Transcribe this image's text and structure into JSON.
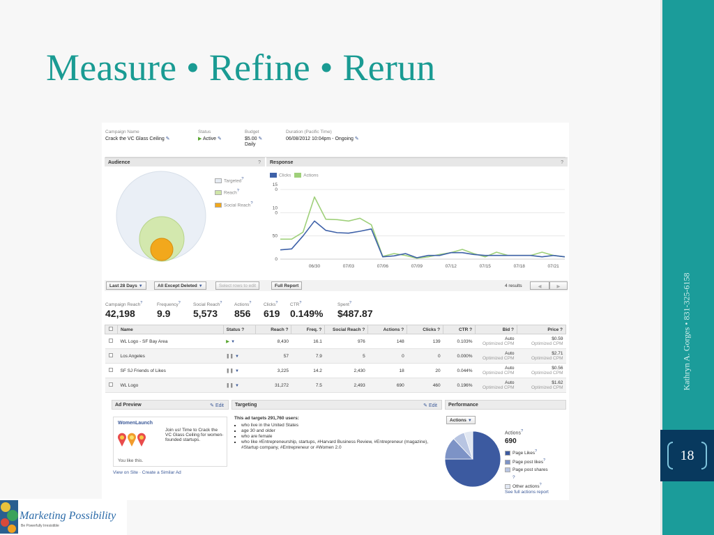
{
  "slide": {
    "title": "Measure • Refine • Rerun",
    "vertical_text": "Kathryn A. Gorges • 831-325-6158",
    "page_number": "18",
    "logo": {
      "name": "Marketing Possibility",
      "tagline": "Be Powerfully Irresistible"
    },
    "colors": {
      "title": "#1a9b93",
      "band": "#1b9c9a",
      "page_box": "#08395e"
    }
  },
  "campaign": {
    "name_label": "Campaign Name",
    "name": "Crack the VC Glass Ceiling",
    "status_label": "Status",
    "status": "Active",
    "budget_label": "Budget",
    "budget": "$5.00",
    "budget_period": "Daily",
    "duration_label": "Duration (Pacific Time)",
    "duration": "06/08/2012 10:04pm - Ongoing"
  },
  "audience": {
    "title": "Audience",
    "help": "?",
    "legend": [
      {
        "label": "Targeted",
        "color": "#e6ecf3"
      },
      {
        "label": "Reach",
        "color": "#cfe5a8"
      },
      {
        "label": "Social Reach",
        "color": "#f2a81c"
      }
    ]
  },
  "response": {
    "title": "Response",
    "help": "?",
    "legend": [
      {
        "label": "Clicks",
        "color": "#3e61a8"
      },
      {
        "label": "Actions",
        "color": "#9fd07a"
      }
    ]
  },
  "chart_data": {
    "type": "line",
    "y_ticks": [
      "15\n0",
      "10\n0",
      "50",
      "0"
    ],
    "ylim": [
      0,
      150
    ],
    "x_ticks": [
      "06/30",
      "07/03",
      "07/06",
      "07/09",
      "07/12",
      "07/15",
      "07/18",
      "07/21"
    ],
    "series": [
      {
        "name": "Clicks",
        "color": "#3e61a8",
        "values": [
          20,
          22,
          50,
          82,
          62,
          57,
          56,
          60,
          65,
          5,
          7,
          12,
          3,
          8,
          8,
          14,
          14,
          10,
          8,
          8,
          8,
          8,
          8,
          5,
          8,
          5
        ]
      },
      {
        "name": "Actions",
        "color": "#9fd07a",
        "values": [
          43,
          43,
          58,
          134,
          86,
          85,
          82,
          88,
          74,
          6,
          12,
          8,
          2,
          5,
          10,
          14,
          21,
          12,
          5,
          15,
          8,
          8,
          8,
          15,
          8,
          5
        ]
      }
    ]
  },
  "toolbar": {
    "range": "Last 28 Days",
    "filter": "All Except Deleted",
    "select_rows": "Select rows to edit",
    "full_report": "Full Report",
    "results": "4 results",
    "prev": "◀",
    "next": "▶"
  },
  "stats": [
    {
      "label": "Campaign Reach",
      "value": "42,198"
    },
    {
      "label": "Frequency",
      "value": "9.9"
    },
    {
      "label": "Social Reach",
      "value": "5,573"
    },
    {
      "label": "Actions",
      "value": "856"
    },
    {
      "label": "Clicks",
      "value": "619"
    },
    {
      "label": "CTR",
      "value": "0.149%"
    },
    {
      "label": "Spent",
      "value": "$487.87"
    }
  ],
  "table": {
    "headers": [
      "Name",
      "Status ?",
      "Reach ?",
      "Freq. ?",
      "Social Reach ?",
      "Actions ?",
      "Clicks ?",
      "CTR ?",
      "Bid ?",
      "Price ?"
    ],
    "rows": [
      {
        "name": "WL Logo - SF Bay Area",
        "status": "active",
        "reach": "8,430",
        "freq": "16.1",
        "social": "976",
        "actions": "148",
        "clicks": "139",
        "ctr": "0.103%",
        "bid": "Auto",
        "bid_sub": "Optimized CPM",
        "price": "$0.59",
        "price_sub": "Optimized CPM"
      },
      {
        "name": "Los Angeles",
        "status": "paused",
        "reach": "57",
        "freq": "7.9",
        "social": "5",
        "actions": "0",
        "clicks": "0",
        "ctr": "0.000%",
        "bid": "Auto",
        "bid_sub": "Optimized CPM",
        "price": "$2.71",
        "price_sub": "Optimized CPM"
      },
      {
        "name": "SF SJ Friends of Likes",
        "status": "paused",
        "reach": "3,225",
        "freq": "14.2",
        "social": "2,430",
        "actions": "18",
        "clicks": "20",
        "ctr": "0.044%",
        "bid": "Auto",
        "bid_sub": "Optimized CPM",
        "price": "$0.56",
        "price_sub": "Optimized CPM"
      },
      {
        "name": "WL Logo",
        "status": "paused",
        "reach": "31,272",
        "freq": "7.5",
        "social": "2,493",
        "actions": "690",
        "clicks": "460",
        "ctr": "0.196%",
        "bid": "Auto",
        "bid_sub": "Optimized CPM",
        "price": "$1.62",
        "price_sub": "Optimized CPM"
      }
    ]
  },
  "ad_preview": {
    "title": "Ad Preview",
    "edit": "Edit",
    "ad_title": "WomenLaunch",
    "ad_body": "Join us! Time to Crack the VC Glass Ceiling for women-founded startups.",
    "like": "You like this.",
    "links": "View on Site · Create a Similar Ad"
  },
  "targeting": {
    "title": "Targeting",
    "edit": "Edit",
    "intro": "This ad targets 291,760 users:",
    "items": [
      "who live in the United States",
      "age 30 and older",
      "who are female",
      "who like #Entrepreneurship, startups, #Harvard Business Review, #Entrepreneur (magazine), #Startup company, #Entrepreneur or #Women 2.0"
    ]
  },
  "performance": {
    "title": "Performance",
    "dropdown": "Actions",
    "actions_label": "Actions",
    "actions_value": "690",
    "legend": [
      {
        "label": "Page Likes",
        "color": "#3c5aa0"
      },
      {
        "label": "Page post likes",
        "color": "#7d93c6"
      },
      {
        "label": "Page post shares",
        "color": "#b8c5e2"
      },
      {
        "label": "Other actions",
        "color": "#e1e7f2"
      }
    ],
    "pie_fractions": [
      0.75,
      0.13,
      0.07,
      0.05
    ],
    "see_full": "See full actions report"
  }
}
